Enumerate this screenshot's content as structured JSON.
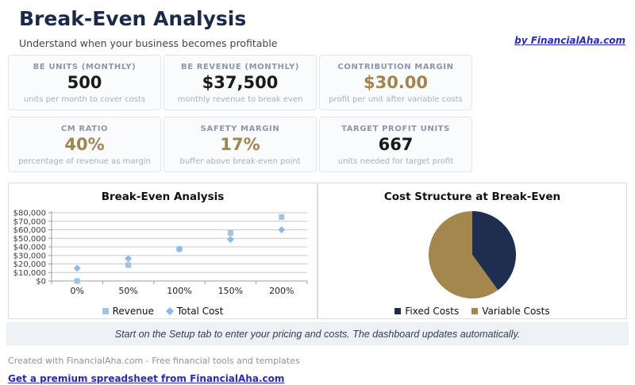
{
  "header": {
    "title": "Break-Even Analysis",
    "subtitle": "Understand when your business becomes profitable",
    "credit_link": "by FinancialAha.com"
  },
  "kpis": [
    {
      "label": "BE UNITS (MONTHLY)",
      "value": "500",
      "desc": "units per month to cover costs",
      "value_color": "#1a1a1a"
    },
    {
      "label": "BE REVENUE (MONTHLY)",
      "value": "$37,500",
      "desc": "monthly revenue to break even",
      "value_color": "#1a1a1a"
    },
    {
      "label": "CONTRIBUTION MARGIN",
      "value": "$30.00",
      "desc": "profit per unit after variable costs",
      "value_color": "#a2854d"
    },
    {
      "label": "CM RATIO",
      "value": "40%",
      "desc": "percentage of revenue as margin",
      "value_color": "#a2854d"
    },
    {
      "label": "SAFETY MARGIN",
      "value": "17%",
      "desc": "buffer above break-even point",
      "value_color": "#a2854d"
    },
    {
      "label": "TARGET PROFIT UNITS",
      "value": "667",
      "desc": "units needed for target profit",
      "value_color": "#1a1a1a"
    }
  ],
  "chart_data": [
    {
      "type": "scatter",
      "title": "Break-Even Analysis",
      "x_categories": [
        "0%",
        "50%",
        "100%",
        "150%",
        "200%"
      ],
      "series": [
        {
          "name": "Revenue",
          "marker": "square",
          "color": "#9dc3e6",
          "values": [
            0,
            18750,
            37500,
            56250,
            75000
          ]
        },
        {
          "name": "Total Cost",
          "marker": "diamond",
          "color": "#8fb9e8",
          "values": [
            15000,
            26250,
            37500,
            48750,
            60000
          ]
        }
      ],
      "y_ticks": [
        "$0",
        "$10,000",
        "$20,000",
        "$30,000",
        "$40,000",
        "$50,000",
        "$60,000",
        "$70,000",
        "$80,000"
      ],
      "ylim": [
        0,
        80000
      ],
      "grid": true,
      "legend_position": "bottom"
    },
    {
      "type": "pie",
      "title": "Cost Structure at Break-Even",
      "slices": [
        {
          "label": "Fixed Costs",
          "value": 15000,
          "color": "#1e2e50"
        },
        {
          "label": "Variable Costs",
          "value": 22500,
          "color": "#a5874e"
        }
      ],
      "start_angle_deg": -90,
      "direction": "clockwise",
      "legend_position": "bottom"
    }
  ],
  "notice": "Start on the Setup tab to enter your pricing and costs. The dashboard updates automatically.",
  "footer": {
    "created": "Created with FinancialAha.com - Free financial tools and templates",
    "premium_link": "Get a premium spreadsheet from FinancialAha.com"
  }
}
